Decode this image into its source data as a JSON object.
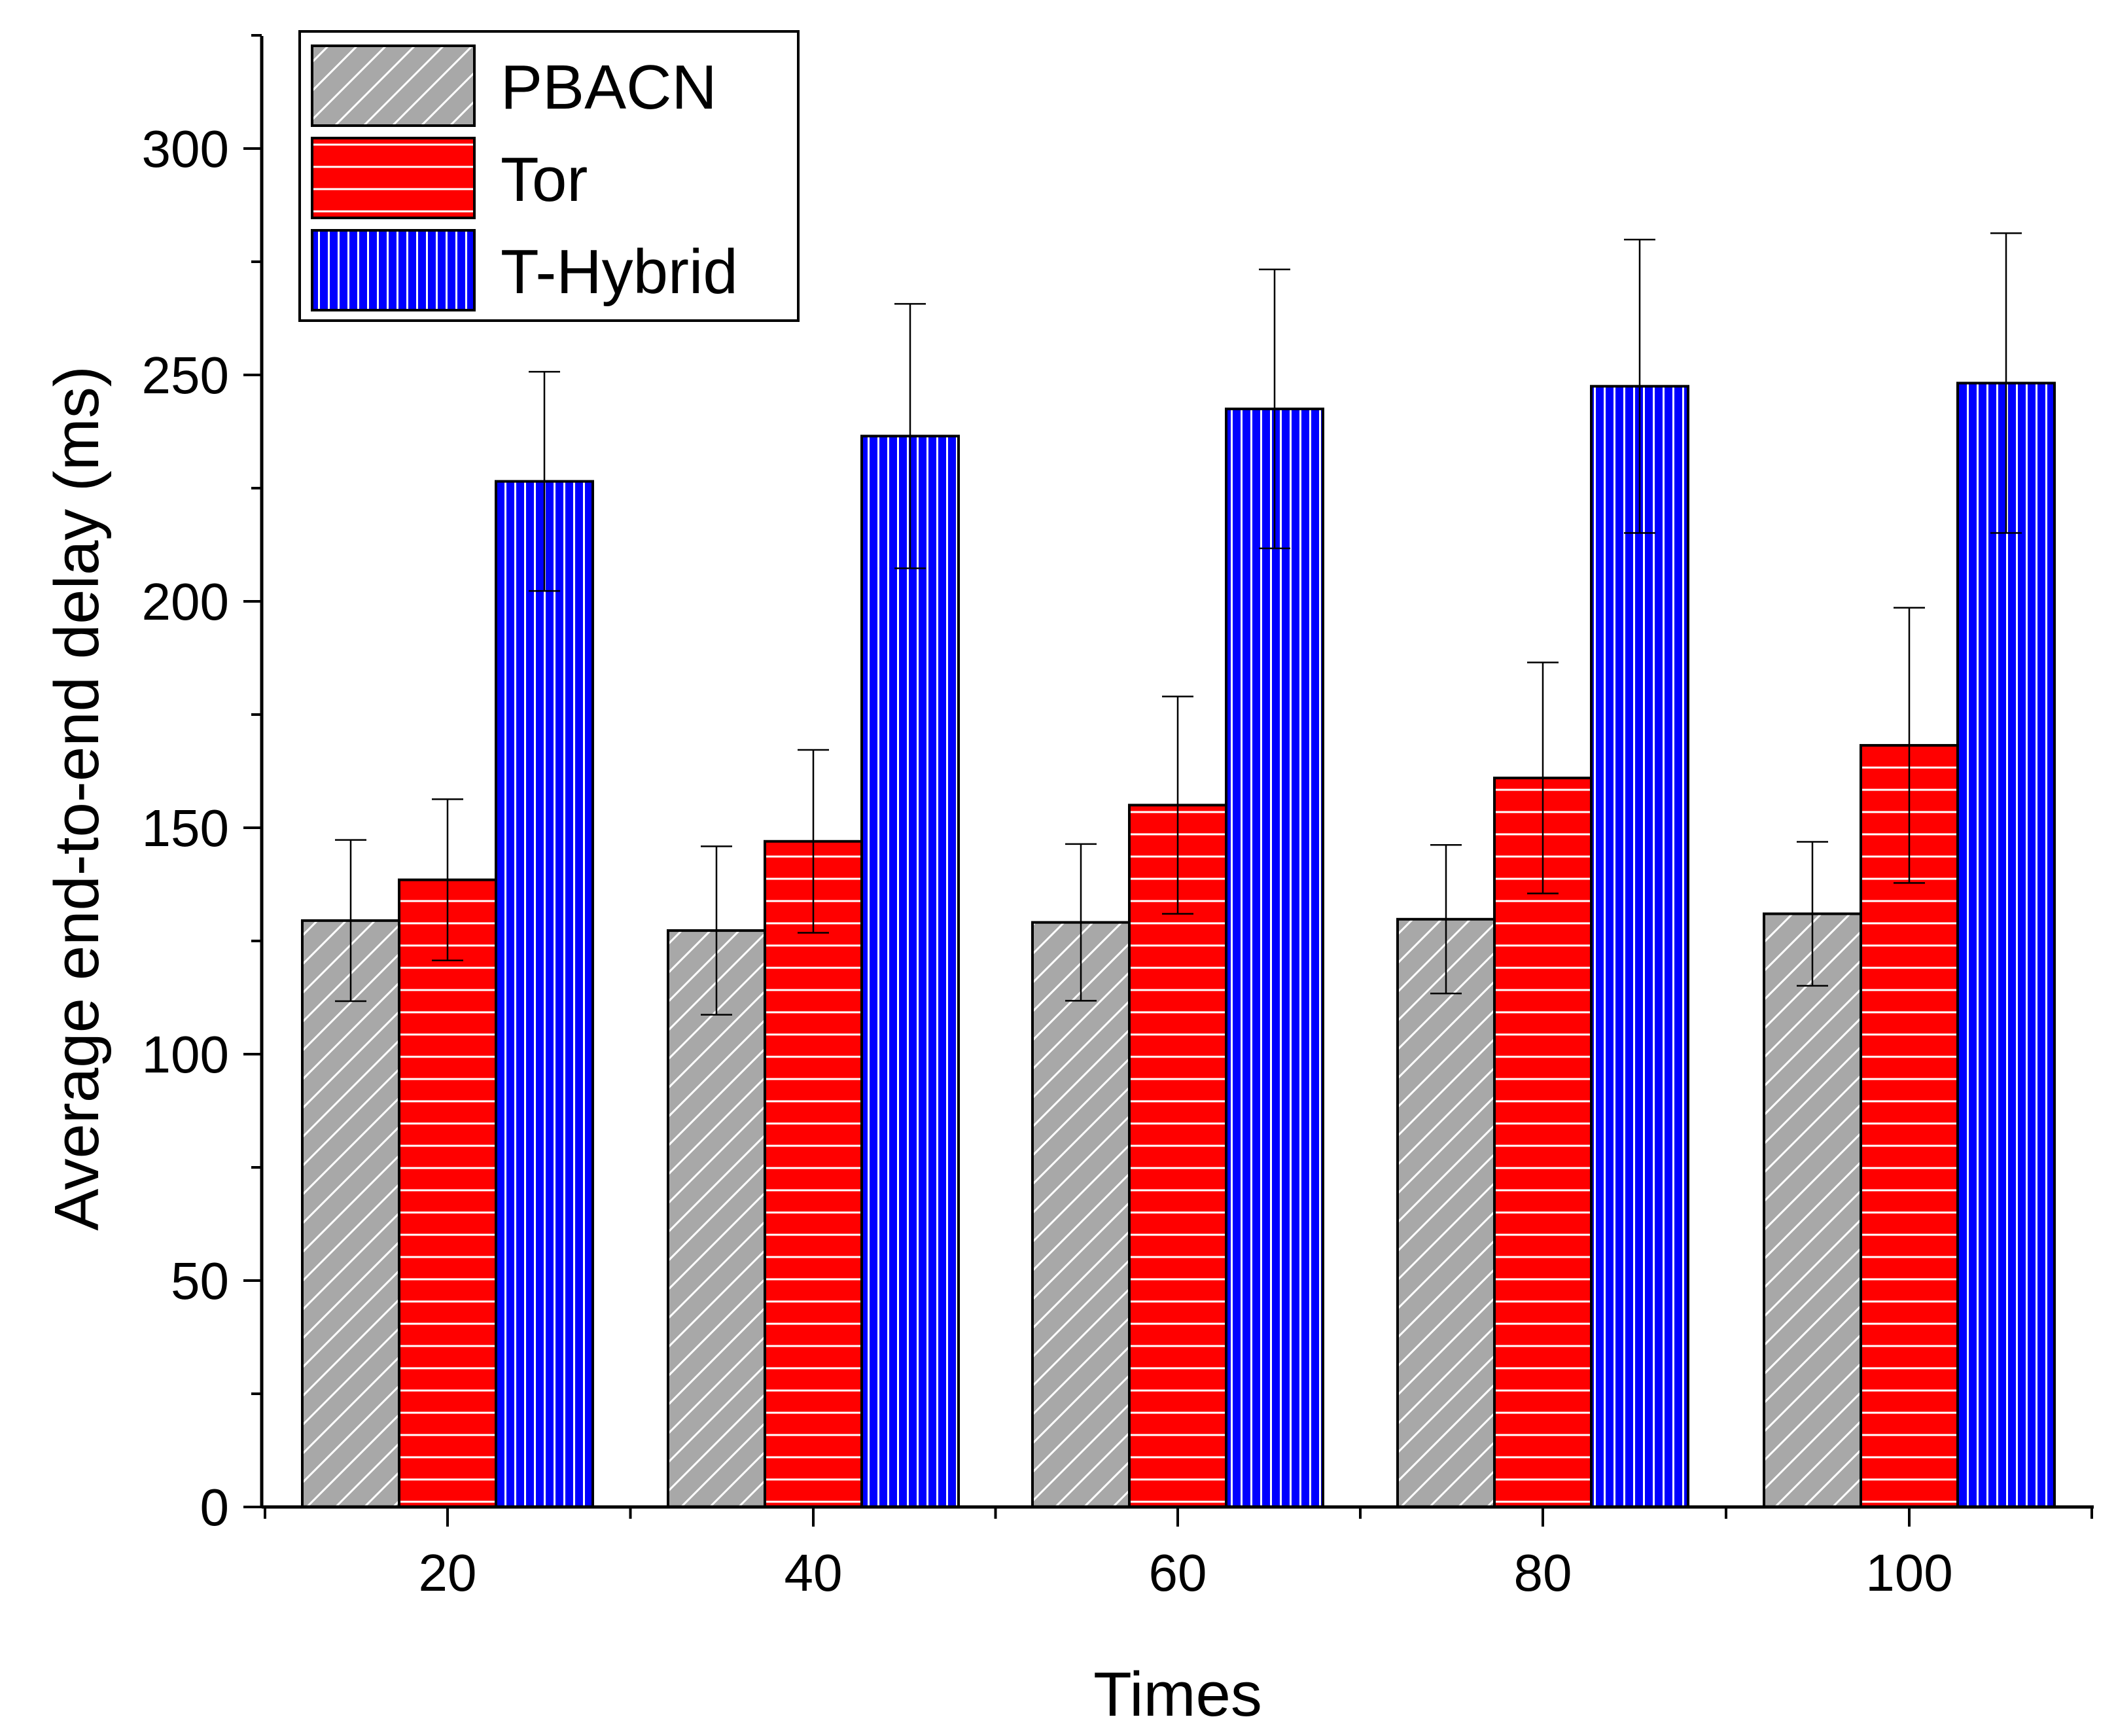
{
  "chart_data": {
    "type": "bar",
    "title": "",
    "xlabel": "Times",
    "ylabel": "Average end-to-end delay (ms)",
    "categories": [
      "20",
      "40",
      "60",
      "80",
      "100"
    ],
    "ylim": [
      0,
      325
    ],
    "yticks": [
      0,
      50,
      100,
      150,
      200,
      250,
      300
    ],
    "grid": false,
    "legend_position": "top-left",
    "series": [
      {
        "name": "PBACN",
        "values": [
          129.5,
          127.3,
          129.1,
          129.8,
          131.0
        ],
        "errors": [
          17.8,
          18.6,
          17.3,
          16.4,
          15.9
        ],
        "color": "#a8a8a8",
        "pattern": "diagonal",
        "pattern_color": "#ffffff"
      },
      {
        "name": "Tor",
        "values": [
          138.5,
          147.0,
          155.0,
          161.0,
          168.2
        ],
        "errors": [
          17.8,
          20.2,
          24.0,
          25.5,
          30.4
        ],
        "color": "#ff0000",
        "pattern": "horizontal",
        "pattern_color": "#ffffff"
      },
      {
        "name": "T-Hybrid",
        "values": [
          226.5,
          236.5,
          242.5,
          247.5,
          248.2
        ],
        "errors": [
          24.2,
          29.2,
          30.8,
          32.4,
          33.1
        ],
        "color": "#0000ff",
        "pattern": "vertical",
        "pattern_color": "#ffffff"
      }
    ]
  }
}
